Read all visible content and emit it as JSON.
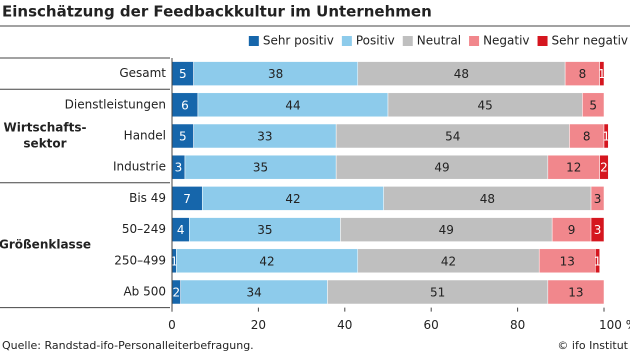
{
  "chart_data": {
    "type": "stacked-bar-horizontal",
    "title": "Einschätzung der Feedbackkultur im Unternehmen",
    "groups": [
      {
        "categories": [
          "Gesamt"
        ]
      },
      {
        "label": [
          "Wirtschafts-",
          "sektor"
        ],
        "categories": [
          "Dienstleistungen",
          "Handel",
          "Industrie"
        ]
      },
      {
        "label": [
          "Größenklasse"
        ],
        "categories": [
          "Bis 49",
          "50–249",
          "250–499",
          "Ab 500"
        ]
      }
    ],
    "series": [
      {
        "name": "Sehr positiv",
        "color": "#1666ab",
        "values": [
          5,
          6,
          5,
          3,
          7,
          4,
          1,
          2
        ]
      },
      {
        "name": "Positiv",
        "color": "#8dcbeb",
        "values": [
          38,
          44,
          33,
          35,
          42,
          35,
          42,
          34
        ]
      },
      {
        "name": "Neutral",
        "color": "#bfbfbf",
        "values": [
          48,
          45,
          54,
          49,
          48,
          49,
          42,
          51
        ]
      },
      {
        "name": "Negativ",
        "color": "#f1878c",
        "values": [
          8,
          5,
          8,
          12,
          3,
          9,
          13,
          13
        ]
      },
      {
        "name": "Sehr negativ",
        "color": "#d5161f",
        "values": [
          1,
          null,
          1,
          2,
          null,
          3,
          1,
          null
        ]
      }
    ],
    "xlim": [
      0,
      100
    ],
    "xticks": [
      0,
      20,
      40,
      60,
      80,
      {
        "value": 100,
        "label": "100 %"
      }
    ],
    "source": "Quelle: Randstad-ifo-Personalleiterbefragung.",
    "credit": "© ifo Institut"
  }
}
